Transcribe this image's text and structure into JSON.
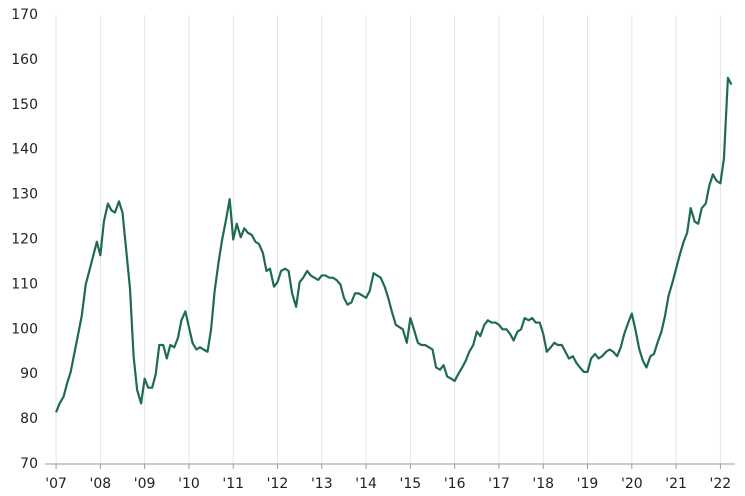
{
  "chart_data": {
    "type": "line",
    "color": "#1f6b4e",
    "grid": true,
    "xlim": [
      2006.75,
      2022.33
    ],
    "xticks": [
      {
        "value": 2007,
        "label": "'07"
      },
      {
        "value": 2008,
        "label": "'08"
      },
      {
        "value": 2009,
        "label": "'09"
      },
      {
        "value": 2010,
        "label": "'10"
      },
      {
        "value": 2011,
        "label": "'11"
      },
      {
        "value": 2012,
        "label": "'12"
      },
      {
        "value": 2013,
        "label": "'13"
      },
      {
        "value": 2014,
        "label": "'14"
      },
      {
        "value": 2015,
        "label": "'15"
      },
      {
        "value": 2016,
        "label": "'16"
      },
      {
        "value": 2017,
        "label": "'17"
      },
      {
        "value": 2018,
        "label": "'18"
      },
      {
        "value": 2019,
        "label": "'19"
      },
      {
        "value": 2020,
        "label": "'20"
      },
      {
        "value": 2021,
        "label": "'21"
      },
      {
        "value": 2022,
        "label": "'22"
      }
    ],
    "ylim": [
      70,
      170
    ],
    "yticks": [
      70,
      80,
      90,
      100,
      110,
      120,
      130,
      140,
      150,
      160,
      170
    ],
    "x": [
      2007,
      2007.08,
      2007.17,
      2007.25,
      2007.33,
      2007.42,
      2007.5,
      2007.58,
      2007.67,
      2007.75,
      2007.83,
      2007.92,
      2008,
      2008.08,
      2008.17,
      2008.25,
      2008.33,
      2008.42,
      2008.5,
      2008.58,
      2008.67,
      2008.75,
      2008.83,
      2008.92,
      2009,
      2009.08,
      2009.17,
      2009.25,
      2009.33,
      2009.42,
      2009.5,
      2009.58,
      2009.67,
      2009.75,
      2009.83,
      2009.92,
      2010,
      2010.08,
      2010.17,
      2010.25,
      2010.33,
      2010.42,
      2010.5,
      2010.58,
      2010.67,
      2010.75,
      2010.83,
      2010.92,
      2011,
      2011.08,
      2011.17,
      2011.25,
      2011.33,
      2011.42,
      2011.5,
      2011.58,
      2011.67,
      2011.75,
      2011.83,
      2011.92,
      2012,
      2012.08,
      2012.17,
      2012.25,
      2012.33,
      2012.42,
      2012.5,
      2012.58,
      2012.67,
      2012.75,
      2012.83,
      2012.92,
      2013,
      2013.08,
      2013.17,
      2013.25,
      2013.33,
      2013.42,
      2013.5,
      2013.58,
      2013.67,
      2013.75,
      2013.83,
      2013.92,
      2014,
      2014.08,
      2014.17,
      2014.25,
      2014.33,
      2014.42,
      2014.5,
      2014.58,
      2014.67,
      2014.75,
      2014.83,
      2014.92,
      2015,
      2015.08,
      2015.17,
      2015.25,
      2015.33,
      2015.42,
      2015.5,
      2015.58,
      2015.67,
      2015.75,
      2015.83,
      2015.92,
      2016,
      2016.08,
      2016.17,
      2016.25,
      2016.33,
      2016.42,
      2016.5,
      2016.58,
      2016.67,
      2016.75,
      2016.83,
      2016.92,
      2017,
      2017.08,
      2017.17,
      2017.25,
      2017.33,
      2017.42,
      2017.5,
      2017.58,
      2017.67,
      2017.75,
      2017.83,
      2017.92,
      2018,
      2018.08,
      2018.17,
      2018.25,
      2018.33,
      2018.42,
      2018.5,
      2018.58,
      2018.67,
      2018.75,
      2018.83,
      2018.92,
      2019,
      2019.08,
      2019.17,
      2019.25,
      2019.33,
      2019.42,
      2019.5,
      2019.58,
      2019.67,
      2019.75,
      2019.83,
      2019.92,
      2020,
      2020.08,
      2020.17,
      2020.25,
      2020.33,
      2020.42,
      2020.5,
      2020.58,
      2020.67,
      2020.75,
      2020.83,
      2020.92,
      2021,
      2021.08,
      2021.17,
      2021.25,
      2021.33,
      2021.42,
      2021.5,
      2021.58,
      2021.67,
      2021.75,
      2021.83,
      2021.92,
      2022,
      2022.08,
      2022.17,
      2022.25
    ],
    "values": [
      81.5,
      83.5,
      85,
      88,
      90.5,
      95,
      99,
      103,
      110,
      113,
      116,
      119.5,
      116.5,
      124,
      128,
      126.5,
      126,
      128.5,
      126,
      118,
      109,
      94,
      86.5,
      83.5,
      89,
      87,
      87,
      90,
      96.5,
      96.5,
      93.5,
      96.5,
      96,
      98,
      102,
      104,
      100.5,
      97,
      95.5,
      96,
      95.5,
      95,
      100,
      108.5,
      115,
      120,
      124,
      129,
      120,
      123.5,
      120.5,
      122.5,
      121.5,
      121,
      119.5,
      119,
      117,
      113,
      113.5,
      109.5,
      110.5,
      113,
      113.5,
      113,
      108,
      105,
      110.5,
      111.5,
      113,
      112,
      111.5,
      111,
      112,
      112,
      111.5,
      111.5,
      111,
      110,
      107,
      105.5,
      106,
      108,
      108,
      107.5,
      107,
      108.5,
      112.5,
      112,
      111.5,
      109.5,
      107,
      104,
      101,
      100.5,
      100,
      97,
      102.5,
      100,
      97,
      96.5,
      96.5,
      96,
      95.5,
      91.5,
      91,
      92,
      89.5,
      89,
      88.5,
      90,
      91.5,
      93,
      95,
      96.5,
      99.5,
      98.5,
      101,
      102,
      101.5,
      101.5,
      101,
      100,
      100,
      99,
      97.5,
      99.5,
      100,
      102.5,
      102,
      102.5,
      101.5,
      101.5,
      99,
      95,
      96,
      97,
      96.5,
      96.5,
      95,
      93.5,
      94,
      92.5,
      91.5,
      90.5,
      90.5,
      93.5,
      94.5,
      93.5,
      94,
      95,
      95.5,
      95,
      94,
      96,
      99,
      101.5,
      103.5,
      100,
      95.5,
      93,
      91.5,
      94,
      94.5,
      97,
      99.5,
      103,
      107.5,
      110.5,
      113.5,
      116.5,
      119.5,
      121.5,
      127,
      124,
      123.5,
      127,
      128,
      132,
      134.5,
      133,
      132.5,
      138,
      156,
      154.5
    ]
  }
}
